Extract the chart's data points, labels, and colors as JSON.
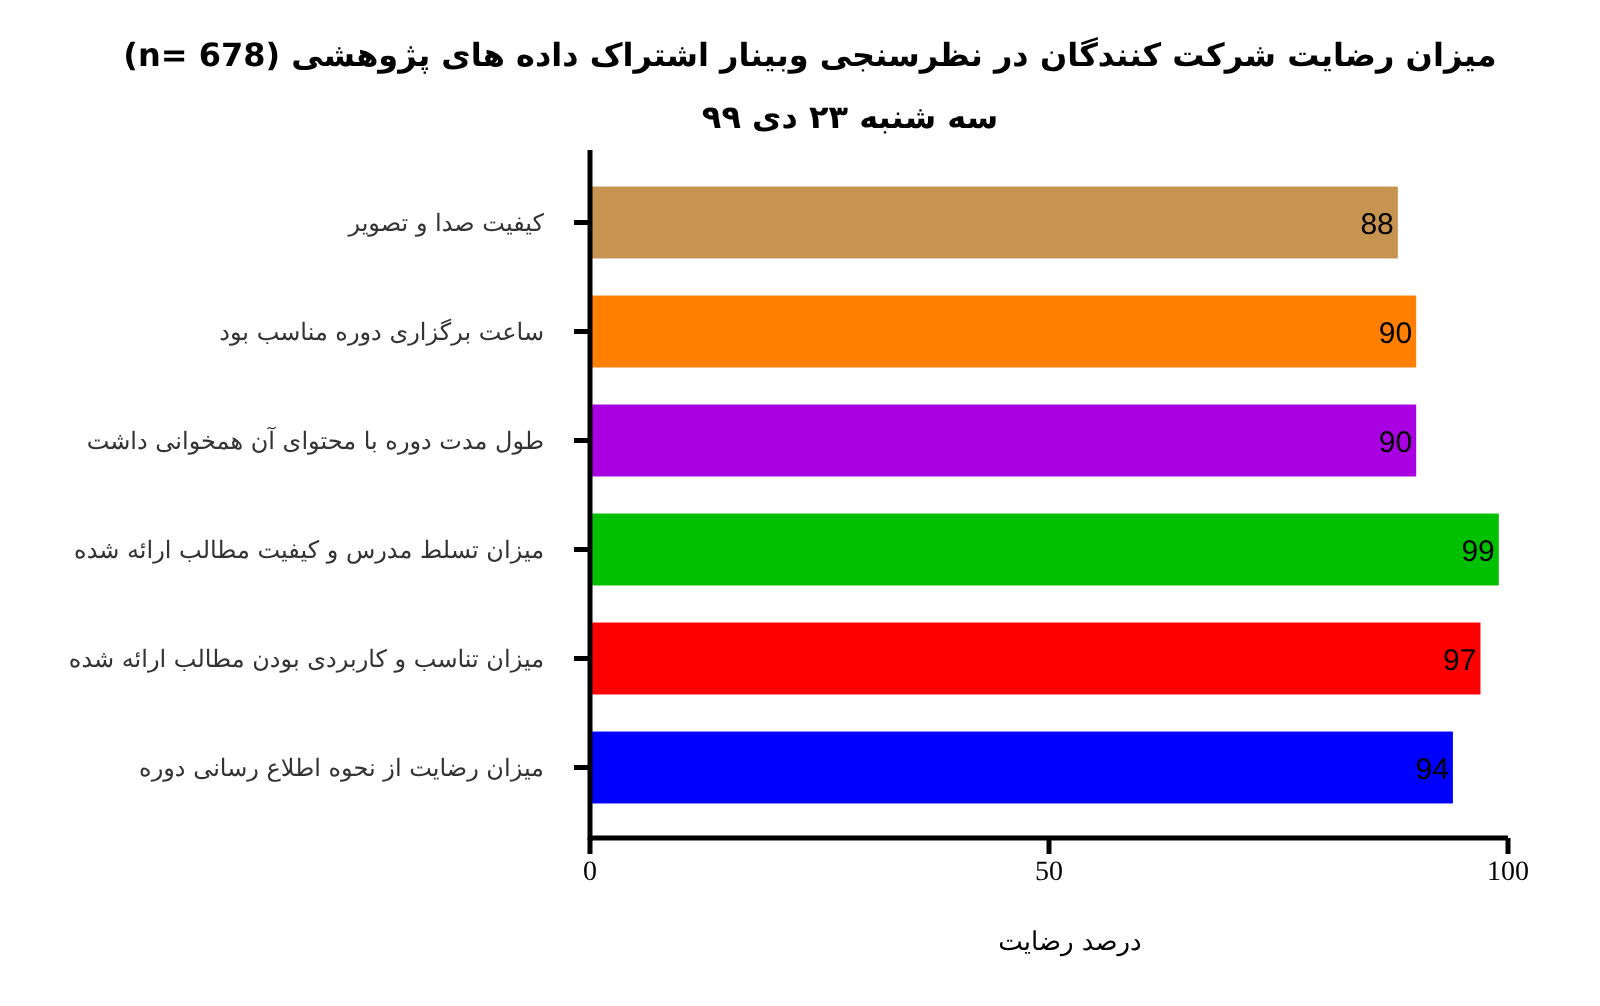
{
  "chart_data": {
    "type": "bar",
    "orientation": "horizontal",
    "title": "میزان رضایت شرکت کنندگان در نظرسنجی وبینار اشتراک داده های پژوهشی (n= 678)",
    "subtitle": "سه شنبه ۲۳ دی ۹۹",
    "xlabel": "درصد رضایت",
    "categories": [
      "کیفیت صدا و تصویر",
      "ساعت برگزاری دوره مناسب بود",
      "طول مدت دوره با محتوای آن همخوانی داشت",
      "میزان تسلط مدرس و کیفیت مطالب ارائه شده",
      "میزان تناسب و کاربردی بودن مطالب ارائه شده",
      "میزان رضایت از نحوه اطلاع رسانی دوره"
    ],
    "values": [
      88,
      90,
      90,
      99,
      97,
      94
    ],
    "colors": [
      "#c79350",
      "#ff8000",
      "#a800e0",
      "#00c000",
      "#ff0000",
      "#0000ff"
    ],
    "xlim": [
      0,
      100
    ],
    "xticks": [
      0,
      50,
      100
    ],
    "data_labels": true
  }
}
